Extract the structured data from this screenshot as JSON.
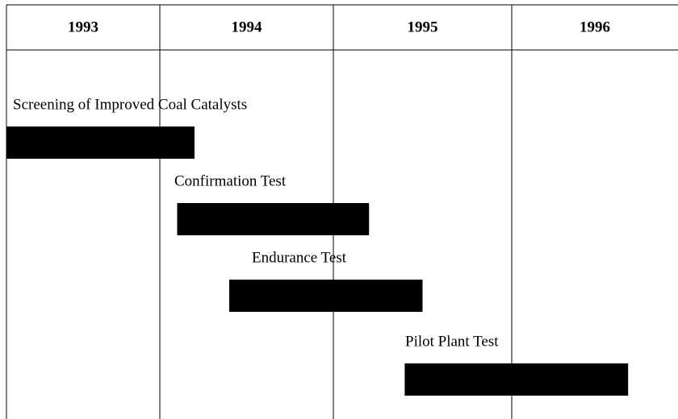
{
  "chart_data": {
    "type": "gantt",
    "categories": [
      "1993",
      "1994",
      "1995",
      "1996"
    ],
    "tasks": [
      {
        "name": "Screening of Improved Coal Catalysts",
        "start": 1993.0,
        "end": 1994.2
      },
      {
        "name": "Confirmation Test",
        "start": 1994.1,
        "end": 1995.2
      },
      {
        "name": "Endurance Test",
        "start": 1994.4,
        "end": 1995.5
      },
      {
        "name": "Pilot Plant Test",
        "start": 1995.4,
        "end": 1996.7
      }
    ],
    "color": "#000000"
  }
}
